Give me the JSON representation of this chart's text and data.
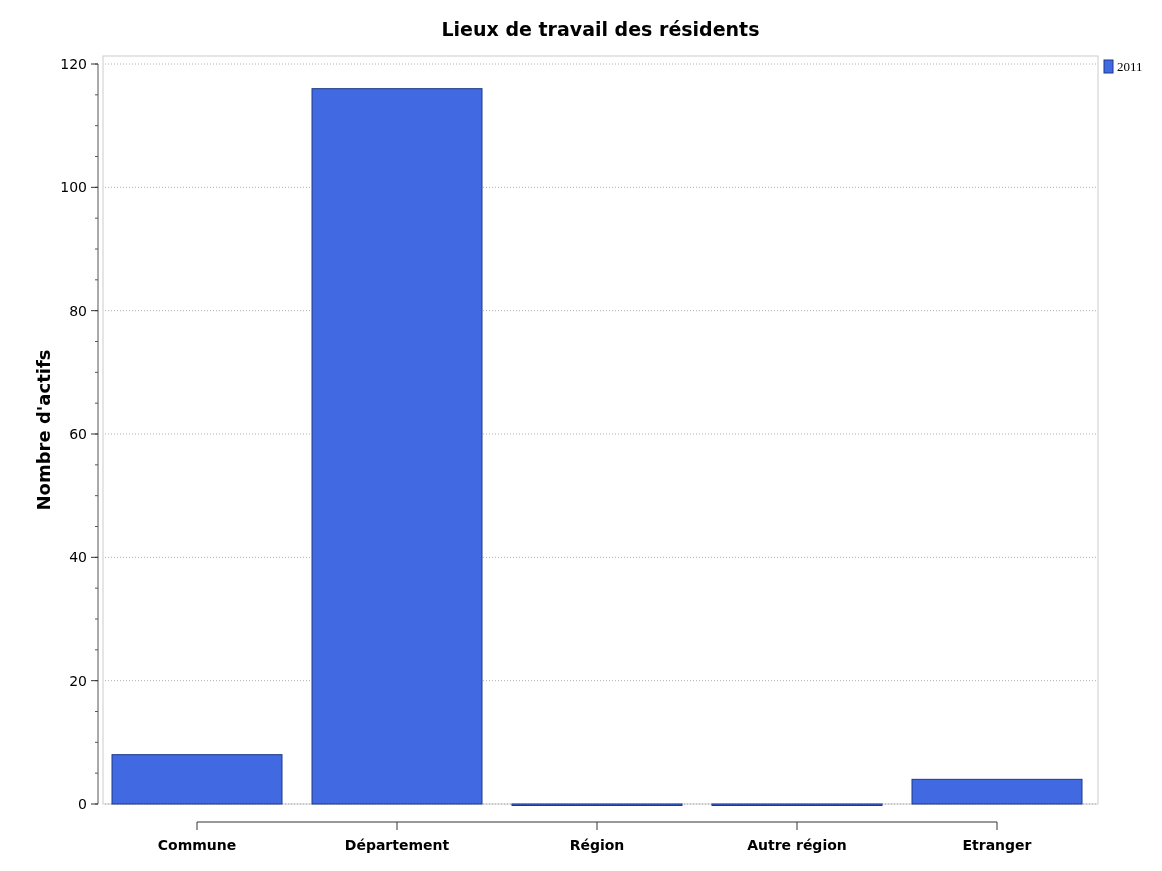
{
  "chart_data": {
    "type": "bar",
    "title": "Lieux de travail des résidents",
    "ylabel": "Nombre d'actifs",
    "categories": [
      "Commune",
      "Département",
      "Région",
      "Autre région",
      "Etranger"
    ],
    "series": [
      {
        "name": "2011",
        "color": "#4169e1",
        "values": [
          8,
          116,
          0,
          0,
          4
        ]
      }
    ],
    "ylim": [
      0,
      120
    ],
    "yticks": [
      0,
      20,
      40,
      60,
      80,
      100,
      120
    ],
    "grid": "y",
    "legend": "top right"
  }
}
